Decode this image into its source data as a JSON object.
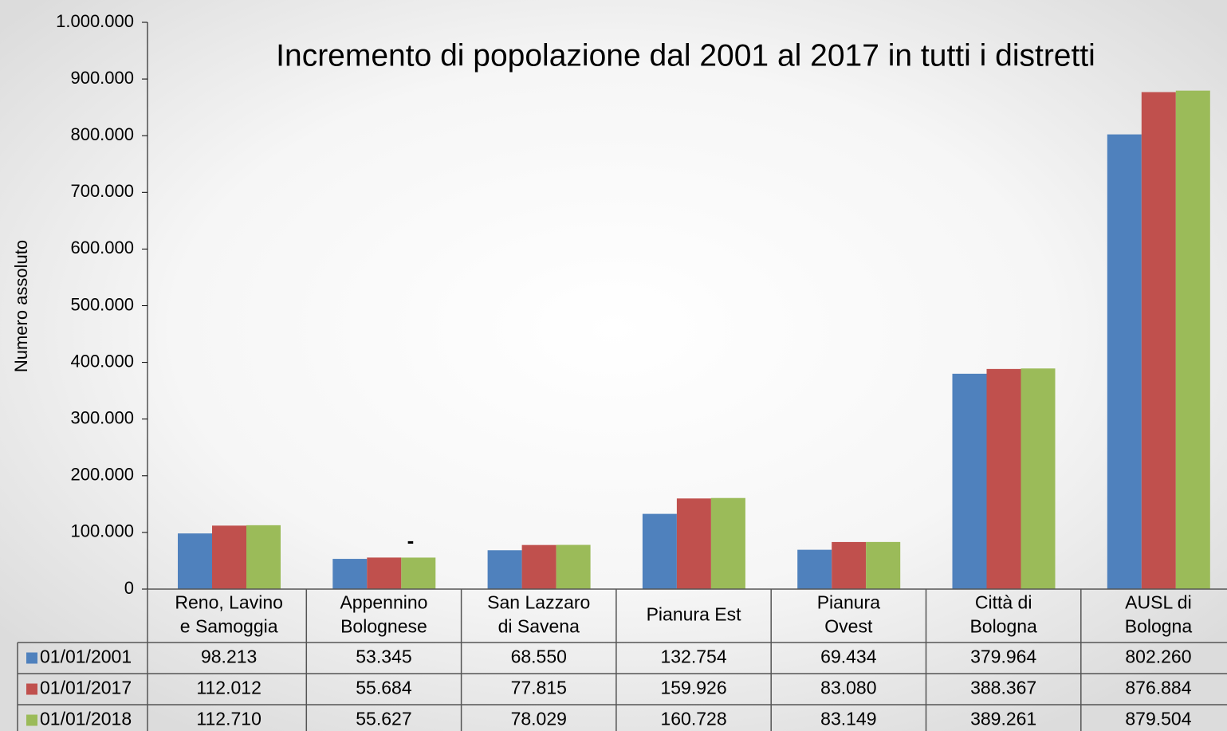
{
  "chart_data": {
    "type": "bar",
    "title": "Incremento di popolazione dal 2001 al 2017 in tutti i distretti",
    "ylabel": "Numero assoluto",
    "annotation": "-",
    "categories": [
      [
        "Reno, Lavino",
        "e Samoggia"
      ],
      [
        "Appennino",
        "Bolognese"
      ],
      [
        "San Lazzaro",
        "di Savena"
      ],
      [
        "Pianura Est"
      ],
      [
        "Pianura",
        "Ovest"
      ],
      [
        "Città di",
        "Bologna"
      ],
      [
        "AUSL di",
        "Bologna"
      ]
    ],
    "series": [
      {
        "name": "01/01/2001",
        "color": "#4f81bd",
        "values": [
          98213,
          53345,
          68550,
          132754,
          69434,
          379964,
          802260
        ],
        "value_labels": [
          "98.213",
          "53.345",
          "68.550",
          "132.754",
          "69.434",
          "379.964",
          "802.260"
        ]
      },
      {
        "name": "01/01/2017",
        "color": "#c0504d",
        "values": [
          112012,
          55684,
          77815,
          159926,
          83080,
          388367,
          876884
        ],
        "value_labels": [
          "112.012",
          "55.684",
          "77.815",
          "159.926",
          "83.080",
          "388.367",
          "876.884"
        ]
      },
      {
        "name": "01/01/2018",
        "color": "#9bbb59",
        "values": [
          112710,
          55627,
          78029,
          160728,
          83149,
          389261,
          879504
        ],
        "value_labels": [
          "112.710",
          "55.627",
          "78.029",
          "160.728",
          "83.149",
          "389.261",
          "879.504"
        ]
      }
    ],
    "ylim": [
      0,
      1000000
    ],
    "yticks": [
      0,
      {
        "value": 100000,
        "label": "100.000"
      },
      {
        "value": 200000,
        "label": "200.000"
      },
      {
        "value": 300000,
        "label": "300.000"
      },
      {
        "value": 400000,
        "label": "400.000"
      },
      {
        "value": 500000,
        "label": "500.000"
      },
      {
        "value": 600000,
        "label": "600.000"
      },
      {
        "value": 700000,
        "label": "700.000"
      },
      {
        "value": 800000,
        "label": "800.000"
      },
      {
        "value": 900000,
        "label": "900.000"
      },
      {
        "value": 1000000,
        "label": "1.000.000"
      }
    ]
  }
}
